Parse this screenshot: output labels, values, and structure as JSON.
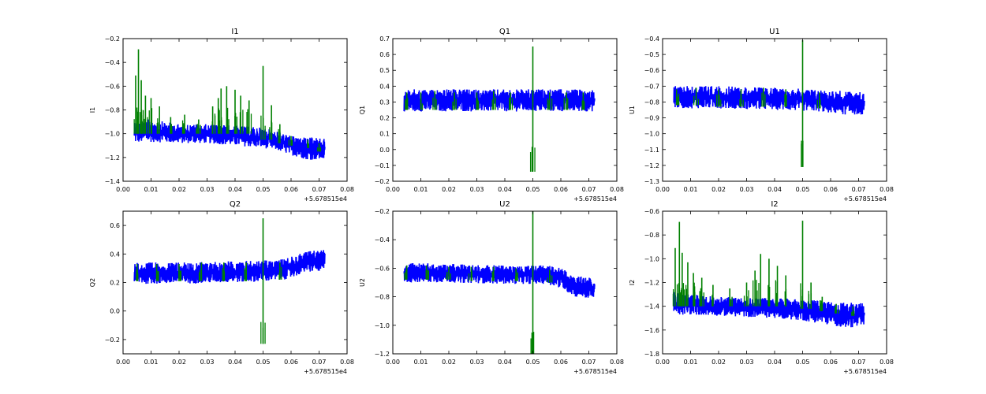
{
  "figure": {
    "background": "#ffffff",
    "band_color": "#0000ff",
    "spike_color": "#008000"
  },
  "chart_data": [
    {
      "type": "line",
      "title": "I1",
      "ylabel": "I1",
      "xlim": [
        0.0,
        0.08
      ],
      "ylim": [
        -1.4,
        -0.2
      ],
      "x_ticks": [
        "0.00",
        "0.01",
        "0.02",
        "0.03",
        "0.04",
        "0.05",
        "0.06",
        "0.07",
        "0.08"
      ],
      "y_ticks": [
        "−1.4",
        "−1.2",
        "−1.0",
        "−0.8",
        "−0.6",
        "−0.4",
        "−0.2"
      ],
      "x_offset_label": "+5.678515e4",
      "series": [
        {
          "values": [
            {
              "x": 0.004,
              "low": -1.08,
              "high": -0.88
            },
            {
              "x": 0.01,
              "low": -1.07,
              "high": -0.88
            },
            {
              "x": 0.02,
              "low": -1.08,
              "high": -0.92
            },
            {
              "x": 0.03,
              "low": -1.08,
              "high": -0.92
            },
            {
              "x": 0.04,
              "low": -1.1,
              "high": -0.93
            },
            {
              "x": 0.05,
              "low": -1.12,
              "high": -0.95
            },
            {
              "x": 0.055,
              "low": -1.14,
              "high": -0.98
            },
            {
              "x": 0.06,
              "low": -1.18,
              "high": -1.02
            },
            {
              "x": 0.066,
              "low": -1.22,
              "high": -1.03
            },
            {
              "x": 0.072,
              "low": -1.22,
              "high": -1.04
            }
          ]
        },
        {
          "values": [
            {
              "x": 0.0045,
              "low": -1.0,
              "high": -0.51
            },
            {
              "x": 0.0055,
              "low": -1.0,
              "high": -0.29
            },
            {
              "x": 0.0065,
              "low": -1.0,
              "high": -0.55
            },
            {
              "x": 0.008,
              "low": -1.0,
              "high": -0.68
            },
            {
              "x": 0.01,
              "low": -1.0,
              "high": -0.7
            },
            {
              "x": 0.013,
              "low": -1.0,
              "high": -0.77
            },
            {
              "x": 0.017,
              "low": -1.0,
              "high": -0.86
            },
            {
              "x": 0.022,
              "low": -1.0,
              "high": -0.84
            },
            {
              "x": 0.027,
              "low": -1.0,
              "high": -0.88
            },
            {
              "x": 0.032,
              "low": -1.0,
              "high": -0.77
            },
            {
              "x": 0.034,
              "low": -1.0,
              "high": -0.7
            },
            {
              "x": 0.035,
              "low": -1.0,
              "high": -0.62
            },
            {
              "x": 0.037,
              "low": -1.0,
              "high": -0.6
            },
            {
              "x": 0.04,
              "low": -1.0,
              "high": -0.63
            },
            {
              "x": 0.042,
              "low": -1.0,
              "high": -0.68
            },
            {
              "x": 0.045,
              "low": -1.0,
              "high": -0.72
            },
            {
              "x": 0.05,
              "low": -1.05,
              "high": -0.43
            },
            {
              "x": 0.053,
              "low": -1.05,
              "high": -0.76
            },
            {
              "x": 0.056,
              "low": -1.08,
              "high": -0.92
            },
            {
              "x": 0.06,
              "low": -1.1,
              "high": -1.02
            },
            {
              "x": 0.066,
              "low": -1.12,
              "high": -1.05
            },
            {
              "x": 0.07,
              "low": -1.15,
              "high": -1.08
            }
          ]
        }
      ]
    },
    {
      "type": "line",
      "title": "Q1",
      "ylabel": "Q1",
      "xlim": [
        0.0,
        0.08
      ],
      "ylim": [
        -0.2,
        0.7
      ],
      "x_ticks": [
        "0.00",
        "0.01",
        "0.02",
        "0.03",
        "0.04",
        "0.05",
        "0.06",
        "0.07",
        "0.08"
      ],
      "y_ticks": [
        "−0.2",
        "−0.1",
        "0.0",
        "0.1",
        "0.2",
        "0.3",
        "0.4",
        "0.5",
        "0.6",
        "0.7"
      ],
      "x_offset_label": "+5.678515e4",
      "series": [
        {
          "values": [
            {
              "x": 0.004,
              "low": 0.24,
              "high": 0.38
            },
            {
              "x": 0.02,
              "low": 0.24,
              "high": 0.38
            },
            {
              "x": 0.04,
              "low": 0.24,
              "high": 0.38
            },
            {
              "x": 0.06,
              "low": 0.24,
              "high": 0.38
            },
            {
              "x": 0.072,
              "low": 0.24,
              "high": 0.38
            }
          ]
        },
        {
          "values": [
            {
              "x": 0.005,
              "low": 0.25,
              "high": 0.36
            },
            {
              "x": 0.01,
              "low": 0.25,
              "high": 0.36
            },
            {
              "x": 0.015,
              "low": 0.25,
              "high": 0.37
            },
            {
              "x": 0.022,
              "low": 0.25,
              "high": 0.36
            },
            {
              "x": 0.03,
              "low": 0.25,
              "high": 0.36
            },
            {
              "x": 0.036,
              "low": 0.25,
              "high": 0.37
            },
            {
              "x": 0.042,
              "low": 0.25,
              "high": 0.36
            },
            {
              "x": 0.05,
              "low": -0.14,
              "high": 0.65
            },
            {
              "x": 0.056,
              "low": 0.25,
              "high": 0.36
            },
            {
              "x": 0.062,
              "low": 0.25,
              "high": 0.36
            },
            {
              "x": 0.068,
              "low": 0.25,
              "high": 0.36
            }
          ]
        }
      ]
    },
    {
      "type": "line",
      "title": "U1",
      "ylabel": "U1",
      "xlim": [
        0.0,
        0.08
      ],
      "ylim": [
        -1.3,
        -0.4
      ],
      "x_ticks": [
        "0.00",
        "0.01",
        "0.02",
        "0.03",
        "0.04",
        "0.05",
        "0.06",
        "0.07",
        "0.08"
      ],
      "y_ticks": [
        "−1.3",
        "−1.2",
        "−1.1",
        "−1.0",
        "−0.9",
        "−0.8",
        "−0.7",
        "−0.6",
        "−0.5",
        "−0.4"
      ],
      "x_offset_label": "+5.678515e4",
      "series": [
        {
          "values": [
            {
              "x": 0.004,
              "low": -0.84,
              "high": -0.69
            },
            {
              "x": 0.02,
              "low": -0.84,
              "high": -0.7
            },
            {
              "x": 0.04,
              "low": -0.85,
              "high": -0.71
            },
            {
              "x": 0.055,
              "low": -0.86,
              "high": -0.72
            },
            {
              "x": 0.065,
              "low": -0.88,
              "high": -0.73
            },
            {
              "x": 0.072,
              "low": -0.88,
              "high": -0.74
            }
          ]
        },
        {
          "values": [
            {
              "x": 0.005,
              "low": -0.82,
              "high": -0.72
            },
            {
              "x": 0.012,
              "low": -0.82,
              "high": -0.71
            },
            {
              "x": 0.02,
              "low": -0.83,
              "high": -0.72
            },
            {
              "x": 0.028,
              "low": -0.83,
              "high": -0.72
            },
            {
              "x": 0.036,
              "low": -0.83,
              "high": -0.71
            },
            {
              "x": 0.044,
              "low": -0.83,
              "high": -0.72
            },
            {
              "x": 0.05,
              "low": -1.21,
              "high": -0.41
            },
            {
              "x": 0.056,
              "low": -0.84,
              "high": -0.74
            }
          ]
        }
      ]
    },
    {
      "type": "line",
      "title": "Q2",
      "ylabel": "Q2",
      "xlim": [
        0.0,
        0.08
      ],
      "ylim": [
        -0.3,
        0.7
      ],
      "x_ticks": [
        "0.00",
        "0.01",
        "0.02",
        "0.03",
        "0.04",
        "0.05",
        "0.06",
        "0.07",
        "0.08"
      ],
      "y_ticks": [
        "−0.2",
        "0.0",
        "0.2",
        "0.4",
        "0.6"
      ],
      "y_tick_values": [
        -0.2,
        0.0,
        0.2,
        0.4,
        0.6
      ],
      "x_offset_label": "+5.678515e4",
      "series": [
        {
          "values": [
            {
              "x": 0.004,
              "low": 0.19,
              "high": 0.34
            },
            {
              "x": 0.02,
              "low": 0.19,
              "high": 0.34
            },
            {
              "x": 0.04,
              "low": 0.2,
              "high": 0.35
            },
            {
              "x": 0.055,
              "low": 0.21,
              "high": 0.36
            },
            {
              "x": 0.06,
              "low": 0.23,
              "high": 0.38
            },
            {
              "x": 0.065,
              "low": 0.27,
              "high": 0.42
            },
            {
              "x": 0.072,
              "low": 0.28,
              "high": 0.43
            }
          ]
        },
        {
          "values": [
            {
              "x": 0.005,
              "low": 0.21,
              "high": 0.33
            },
            {
              "x": 0.012,
              "low": 0.21,
              "high": 0.33
            },
            {
              "x": 0.02,
              "low": 0.21,
              "high": 0.33
            },
            {
              "x": 0.028,
              "low": 0.21,
              "high": 0.34
            },
            {
              "x": 0.036,
              "low": 0.21,
              "high": 0.34
            },
            {
              "x": 0.044,
              "low": 0.21,
              "high": 0.34
            },
            {
              "x": 0.05,
              "low": -0.23,
              "high": 0.65
            },
            {
              "x": 0.056,
              "low": 0.22,
              "high": 0.34
            }
          ]
        }
      ]
    },
    {
      "type": "line",
      "title": "U2",
      "ylabel": "U2",
      "xlim": [
        0.0,
        0.08
      ],
      "ylim": [
        -1.2,
        -0.2
      ],
      "x_ticks": [
        "0.00",
        "0.01",
        "0.02",
        "0.03",
        "0.04",
        "0.05",
        "0.06",
        "0.07",
        "0.08"
      ],
      "y_ticks": [
        "−1.2",
        "−1.0",
        "−0.8",
        "−0.6",
        "−0.4",
        "−0.2"
      ],
      "y_tick_values": [
        -1.2,
        -1.0,
        -0.8,
        -0.6,
        -0.4,
        -0.2
      ],
      "x_offset_label": "+5.678515e4",
      "series": [
        {
          "values": [
            {
              "x": 0.004,
              "low": -0.7,
              "high": -0.56
            },
            {
              "x": 0.02,
              "low": -0.7,
              "high": -0.57
            },
            {
              "x": 0.04,
              "low": -0.71,
              "high": -0.58
            },
            {
              "x": 0.055,
              "low": -0.71,
              "high": -0.58
            },
            {
              "x": 0.06,
              "low": -0.74,
              "high": -0.6
            },
            {
              "x": 0.065,
              "low": -0.8,
              "high": -0.65
            },
            {
              "x": 0.072,
              "low": -0.82,
              "high": -0.67
            }
          ]
        },
        {
          "values": [
            {
              "x": 0.005,
              "low": -0.68,
              "high": -0.58
            },
            {
              "x": 0.012,
              "low": -0.68,
              "high": -0.58
            },
            {
              "x": 0.02,
              "low": -0.68,
              "high": -0.59
            },
            {
              "x": 0.028,
              "low": -0.69,
              "high": -0.59
            },
            {
              "x": 0.036,
              "low": -0.69,
              "high": -0.59
            },
            {
              "x": 0.044,
              "low": -0.69,
              "high": -0.6
            },
            {
              "x": 0.05,
              "low": -1.2,
              "high": -0.2
            },
            {
              "x": 0.056,
              "low": -0.7,
              "high": -0.61
            }
          ]
        }
      ]
    },
    {
      "type": "line",
      "title": "I2",
      "ylabel": "I2",
      "xlim": [
        0.0,
        0.08
      ],
      "ylim": [
        -1.8,
        -0.6
      ],
      "x_ticks": [
        "0.00",
        "0.01",
        "0.02",
        "0.03",
        "0.04",
        "0.05",
        "0.06",
        "0.07",
        "0.08"
      ],
      "y_ticks": [
        "−1.8",
        "−1.6",
        "−1.4",
        "−1.2",
        "−1.0",
        "−0.8",
        "−0.6"
      ],
      "x_offset_label": "+5.678515e4",
      "series": [
        {
          "values": [
            {
              "x": 0.004,
              "low": -1.48,
              "high": -1.28
            },
            {
              "x": 0.01,
              "low": -1.47,
              "high": -1.3
            },
            {
              "x": 0.02,
              "low": -1.48,
              "high": -1.32
            },
            {
              "x": 0.03,
              "low": -1.49,
              "high": -1.33
            },
            {
              "x": 0.04,
              "low": -1.5,
              "high": -1.33
            },
            {
              "x": 0.05,
              "low": -1.52,
              "high": -1.34
            },
            {
              "x": 0.06,
              "low": -1.56,
              "high": -1.36
            },
            {
              "x": 0.066,
              "low": -1.58,
              "high": -1.37
            },
            {
              "x": 0.072,
              "low": -1.58,
              "high": -1.37
            }
          ]
        },
        {
          "values": [
            {
              "x": 0.0045,
              "low": -1.4,
              "high": -0.91
            },
            {
              "x": 0.006,
              "low": -1.4,
              "high": -0.69
            },
            {
              "x": 0.007,
              "low": -1.4,
              "high": -0.95
            },
            {
              "x": 0.009,
              "low": -1.4,
              "high": -1.03
            },
            {
              "x": 0.011,
              "low": -1.4,
              "high": -1.12
            },
            {
              "x": 0.014,
              "low": -1.4,
              "high": -1.16
            },
            {
              "x": 0.018,
              "low": -1.4,
              "high": -1.22
            },
            {
              "x": 0.024,
              "low": -1.4,
              "high": -1.25
            },
            {
              "x": 0.03,
              "low": -1.4,
              "high": -1.2
            },
            {
              "x": 0.033,
              "low": -1.4,
              "high": -1.1
            },
            {
              "x": 0.035,
              "low": -1.4,
              "high": -0.96
            },
            {
              "x": 0.038,
              "low": -1.4,
              "high": -1.0
            },
            {
              "x": 0.041,
              "low": -1.4,
              "high": -1.06
            },
            {
              "x": 0.044,
              "low": -1.4,
              "high": -1.14
            },
            {
              "x": 0.05,
              "low": -1.42,
              "high": -0.68
            },
            {
              "x": 0.053,
              "low": -1.42,
              "high": -1.2
            },
            {
              "x": 0.057,
              "low": -1.44,
              "high": -1.32
            },
            {
              "x": 0.062,
              "low": -1.46,
              "high": -1.38
            },
            {
              "x": 0.068,
              "low": -1.48,
              "high": -1.4
            }
          ]
        }
      ]
    }
  ]
}
